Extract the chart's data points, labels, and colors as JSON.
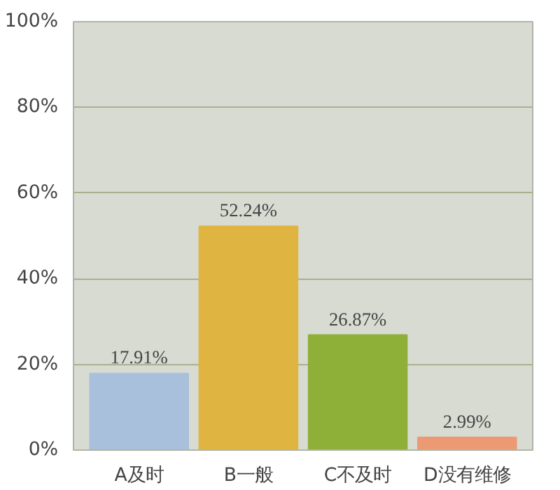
{
  "chart_data": {
    "type": "bar",
    "categories": [
      "A及时",
      "B一般",
      "C不及时",
      "D没有维修"
    ],
    "values": [
      17.91,
      52.24,
      26.87,
      2.99
    ],
    "colors": [
      "#a9c0dc",
      "#e0b440",
      "#8fb038",
      "#ec9a74"
    ],
    "value_labels": [
      "17.91%",
      "52.24%",
      "26.87%",
      "2.99%"
    ],
    "ylim": [
      0,
      100
    ],
    "yticks": [
      {
        "value": 0,
        "label": "0%"
      },
      {
        "value": 20,
        "label": "20%"
      },
      {
        "value": 40,
        "label": "40%"
      },
      {
        "value": 60,
        "label": "60%"
      },
      {
        "value": 80,
        "label": "80%"
      },
      {
        "value": 100,
        "label": "100%"
      }
    ],
    "grid": "y"
  }
}
